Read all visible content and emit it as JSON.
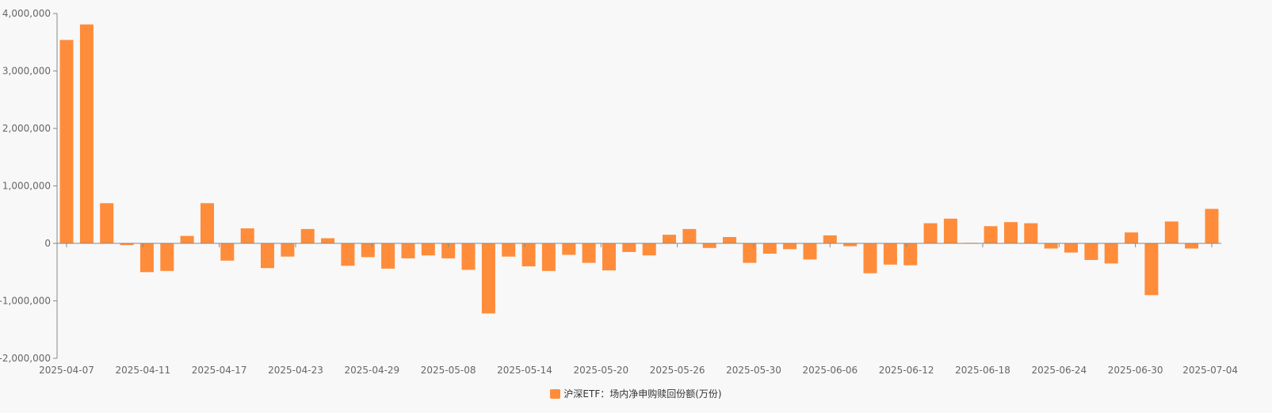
{
  "chart_data": {
    "type": "bar",
    "series": [
      {
        "name": "沪深ETF：场内净申购赎回份额(万份)",
        "color": "#ff8c3a",
        "values": [
          3540000,
          3810000,
          700000,
          -30000,
          -500000,
          -480000,
          130000,
          700000,
          -300000,
          260000,
          -430000,
          -230000,
          250000,
          90000,
          -390000,
          -240000,
          -440000,
          -260000,
          -210000,
          -260000,
          -460000,
          -1220000,
          -230000,
          -400000,
          -480000,
          -200000,
          -340000,
          -470000,
          -150000,
          -210000,
          150000,
          250000,
          -80000,
          110000,
          -340000,
          -180000,
          -100000,
          -280000,
          140000,
          -50000,
          -520000,
          -370000,
          -380000,
          350000,
          430000,
          10000,
          300000,
          370000,
          350000,
          -90000,
          -160000,
          -290000,
          -350000,
          190000,
          -900000,
          380000,
          -90000,
          600000
        ]
      }
    ],
    "x_ticks": [
      "2025-04-07",
      "2025-04-11",
      "2025-04-17",
      "2025-04-23",
      "2025-04-29",
      "2025-05-08",
      "2025-05-14",
      "2025-05-20",
      "2025-05-26",
      "2025-05-30",
      "2025-06-06",
      "2025-06-12",
      "2025-06-18",
      "2025-06-24",
      "2025-06-30",
      "2025-07-04"
    ],
    "y_ticks": [
      "4,000,000",
      "3,000,000",
      "2,000,000",
      "1,000,000",
      "0",
      "-1,000,000",
      "-2,000,000"
    ],
    "ylim": [
      -2000000,
      4000000
    ],
    "legend_position": "bottom-center",
    "grid": false
  },
  "legend": {
    "label": "沪深ETF：场内净申购赎回份额(万份)",
    "color": "#ff8c3a"
  }
}
